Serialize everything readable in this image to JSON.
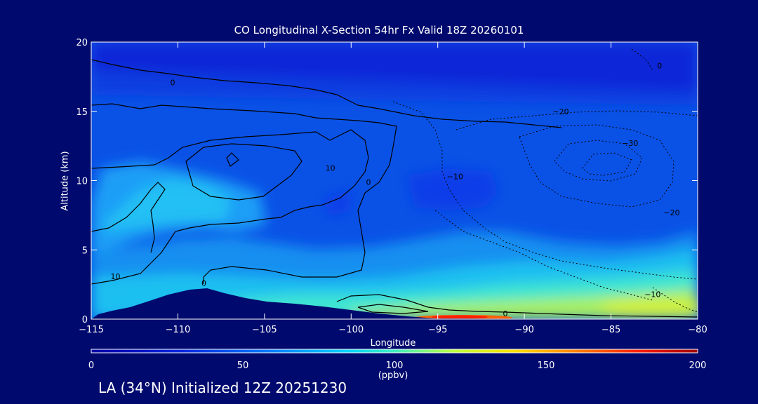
{
  "title": "CO Longitudinal X-Section 54hr  Fx Valid 18Z 20260101",
  "footer": "LA (34°N) Initialized 12Z 20251230",
  "chart_data": {
    "type": "heatmap",
    "title": "CO Longitudinal X-Section 54hr  Fx Valid 18Z 20260101",
    "xlabel": "Longitude",
    "ylabel": "Altitude (km)",
    "xlim": [
      -115,
      -80
    ],
    "ylim": [
      0,
      20
    ],
    "x_ticks": [
      -115,
      -110,
      -105,
      -100,
      -95,
      -90,
      -85,
      -80
    ],
    "x_tick_labels": [
      "−115",
      "−110",
      "−105",
      "−100",
      "−95",
      "−90",
      "−85",
      "−80"
    ],
    "y_ticks": [
      0,
      5,
      10,
      15,
      20
    ],
    "y_tick_labels": [
      "0",
      "5",
      "10",
      "15",
      "20"
    ],
    "colorbar": {
      "min": 0,
      "max": 200,
      "ticks": [
        0,
        50,
        100,
        150,
        200
      ],
      "tick_labels": [
        "0",
        "50",
        "100",
        "150",
        "200"
      ],
      "unit": "(ppbv)"
    },
    "contour_labels": [
      {
        "text": "0",
        "lon": -110.3,
        "alt": 17.1
      },
      {
        "text": "10",
        "lon": -101.2,
        "alt": 10.9
      },
      {
        "text": "0",
        "lon": -99.0,
        "alt": 9.9
      },
      {
        "text": "10",
        "lon": -113.6,
        "alt": 3.1
      },
      {
        "text": "0",
        "lon": -108.5,
        "alt": 2.6
      },
      {
        "text": "−10",
        "lon": -94.0,
        "alt": 10.3
      },
      {
        "text": "−20",
        "lon": -87.9,
        "alt": 15.0
      },
      {
        "text": "−30",
        "lon": -83.9,
        "alt": 12.7
      },
      {
        "text": "−20",
        "lon": -81.5,
        "alt": 7.7
      },
      {
        "text": "−10",
        "lon": -82.6,
        "alt": 1.8
      },
      {
        "text": "0",
        "lon": -91.1,
        "alt": 0.4
      },
      {
        "text": "0",
        "lon": -82.2,
        "alt": 18.3
      }
    ],
    "contour_levels_solid": [
      0,
      10
    ],
    "contour_levels_dotted": [
      -10,
      -20,
      -30
    ]
  }
}
